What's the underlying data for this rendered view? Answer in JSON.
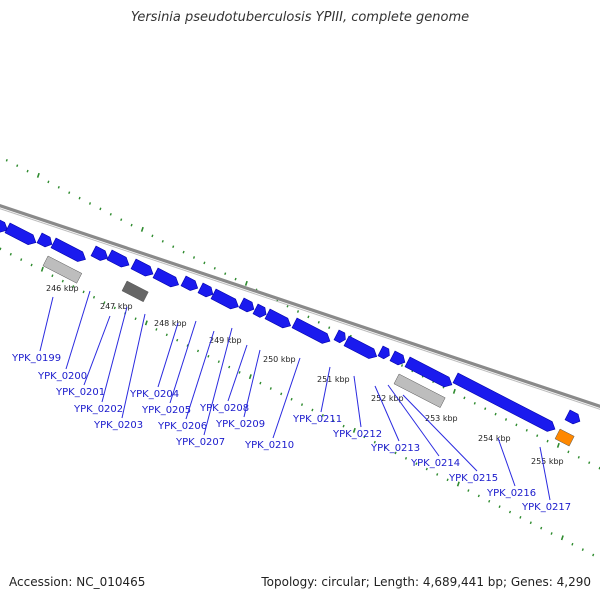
{
  "title": "Yersinia pseudotuberculosis YPIII, complete genome",
  "footer": {
    "accession": "Accession: NC_010465",
    "summary": "Topology: circular; Length: 4,689,441 bp; Genes: 4,290"
  },
  "colors": {
    "backbone": "#888888",
    "gene": "#1a1aee",
    "gene_highlight": "#4d4dff",
    "gene_label": "#1a1acc",
    "tick_outer": "#2e8b2e",
    "tick_inner": "#2e8b2e",
    "feature_light": "#bdbdbd",
    "feature_dark": "#666666",
    "feature_orange": "#ff8800"
  },
  "kbp_markers": [
    "246 kbp",
    "247 kbp",
    "248 kbp",
    "249 kbp",
    "250 kbp",
    "251 kbp",
    "252 kbp",
    "253 kbp",
    "254 kbp",
    "255 kbp"
  ],
  "genes": [
    "YPK_0199",
    "YPK_0200",
    "YPK_0201",
    "YPK_0202",
    "YPK_0203",
    "YPK_0204",
    "YPK_0205",
    "YPK_0206",
    "YPK_0207",
    "YPK_0208",
    "YPK_0209",
    "YPK_0210",
    "YPK_0211",
    "YPK_0212",
    "YPK_0213",
    "YPK_0214",
    "YPK_0215",
    "YPK_0216",
    "YPK_0217"
  ],
  "other_features": [
    {
      "name": "light-feature",
      "color": "light"
    },
    {
      "name": "dark-feature",
      "color": "dark"
    },
    {
      "name": "light-feature",
      "color": "light"
    },
    {
      "name": "orange-feature",
      "color": "orange"
    }
  ]
}
